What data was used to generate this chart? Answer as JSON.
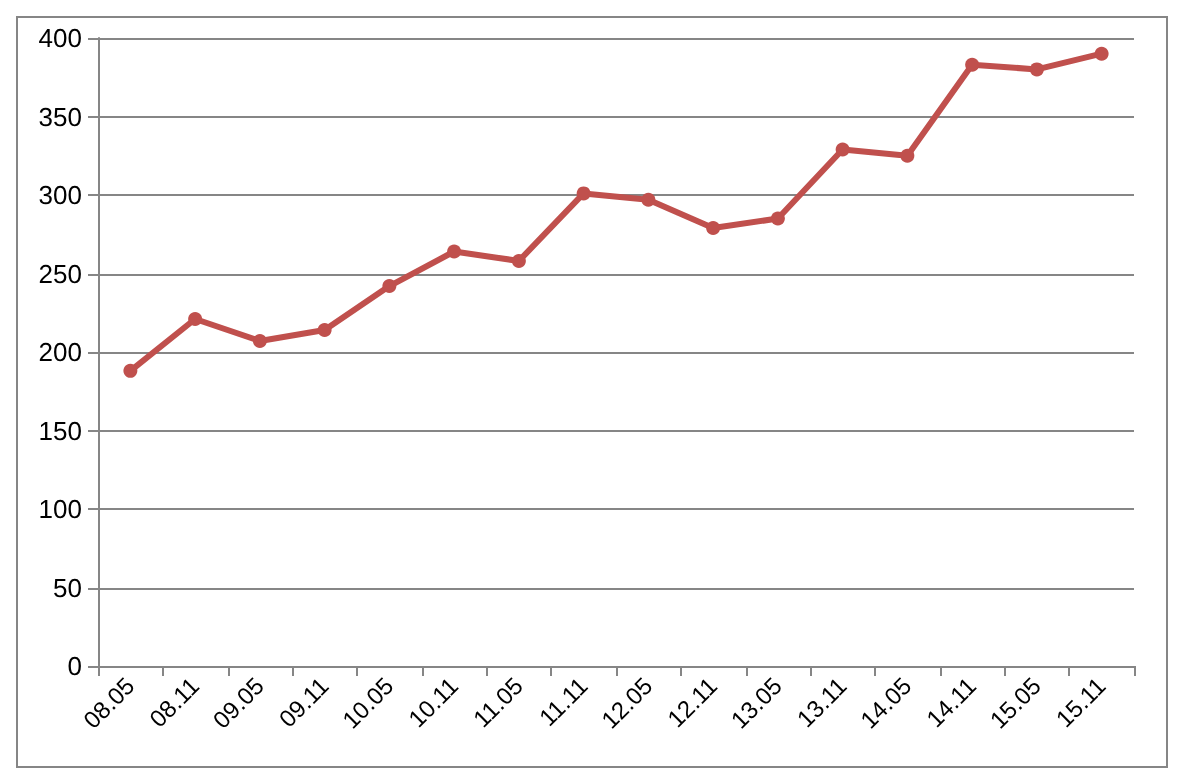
{
  "chart_data": {
    "type": "line",
    "categories": [
      "08.05",
      "08.11",
      "09.05",
      "09.11",
      "10.05",
      "10.11",
      "11.05",
      "11.11",
      "12.05",
      "12.11",
      "13.05",
      "13.11",
      "14.05",
      "14.11",
      "15.05",
      "15.11"
    ],
    "series": [
      {
        "color": "#c0504d",
        "values": [
          188,
          221,
          207,
          214,
          242,
          264,
          258,
          301,
          297,
          279,
          285,
          329,
          325,
          383,
          380,
          390
        ]
      }
    ],
    "ylim": [
      0,
      400
    ],
    "yticks": [
      0,
      50,
      100,
      150,
      200,
      250,
      300,
      350,
      400
    ],
    "grid": "y",
    "marker": "circle",
    "line_style": "solid"
  }
}
